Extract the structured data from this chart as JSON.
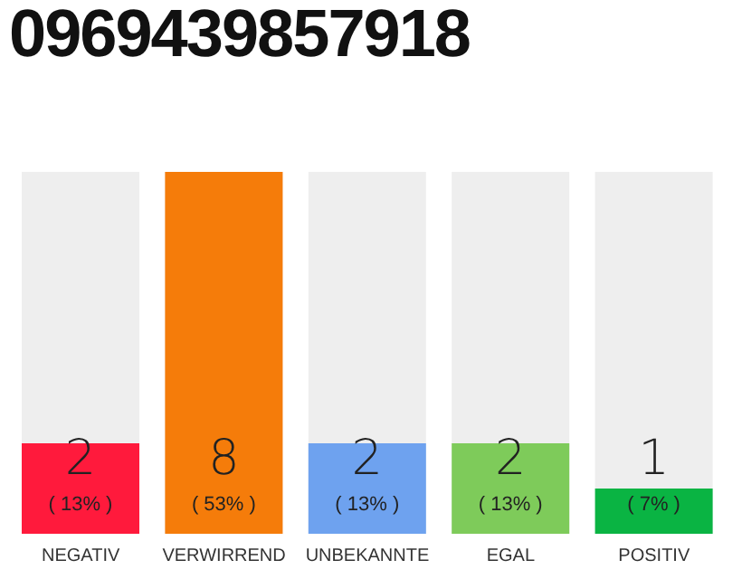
{
  "chart_data": {
    "type": "bar",
    "title": "0969439857918",
    "categories": [
      "NEGATIV",
      "VERWIRREND",
      "UNBEKANNTE",
      "EGAL",
      "POSITIV"
    ],
    "values": [
      2,
      8,
      2,
      2,
      1
    ],
    "colors": [
      "#ff1a3c",
      "#f57c0a",
      "#6ea2ef",
      "#7ecb5a",
      "#0ab443"
    ],
    "value_labels": [
      "2\n( 13% )",
      "8\n( 53% )",
      "2\n( 13% )",
      "2\n( 13% )",
      "1\n( 7% )"
    ]
  }
}
